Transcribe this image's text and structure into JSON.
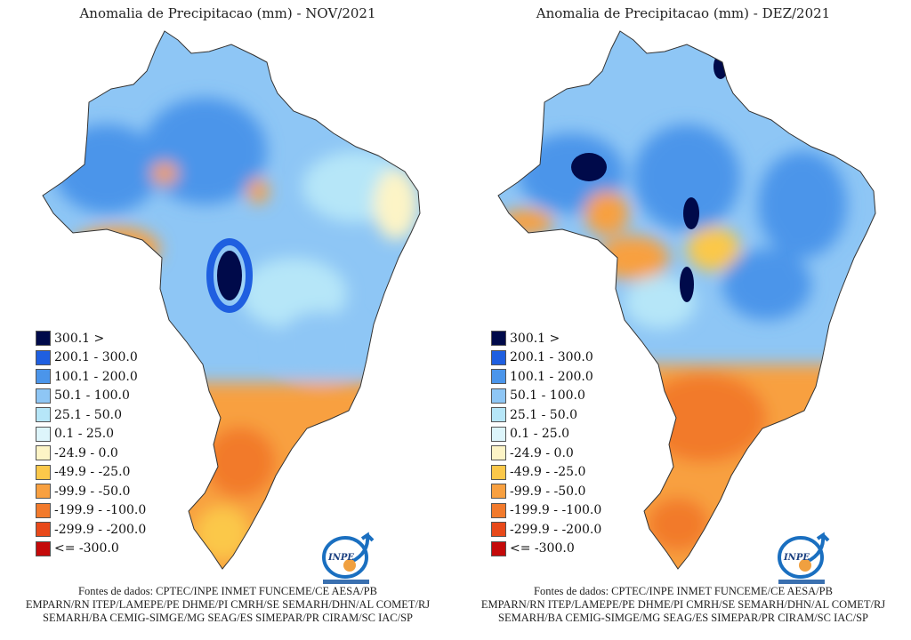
{
  "panels": [
    {
      "title": "Anomalia de Precipitacao (mm) - NOV/2021"
    },
    {
      "title": "Anomalia de Precipitacao (mm) - DEZ/2021"
    }
  ],
  "legend": [
    {
      "label": "300.1 >",
      "color": "#000a4a"
    },
    {
      "label": "200.1 - 300.0",
      "color": "#1f5fe0"
    },
    {
      "label": "100.1 - 200.0",
      "color": "#4b95ea"
    },
    {
      "label": "50.1 - 100.0",
      "color": "#8ec6f5"
    },
    {
      "label": "25.1 - 50.0",
      "color": "#b6e6f8"
    },
    {
      "label": "0.1 - 25.0",
      "color": "#ddf5fb"
    },
    {
      "label": "-24.9 - 0.0",
      "color": "#fdf4c6"
    },
    {
      "label": "-49.9 - -25.0",
      "color": "#fbc84a"
    },
    {
      "label": "-99.9 - -50.0",
      "color": "#f8a040"
    },
    {
      "label": "-199.9 - -100.0",
      "color": "#f27a2c"
    },
    {
      "label": "-299.9 - -200.0",
      "color": "#e8491a"
    },
    {
      "label": "<= -300.0",
      "color": "#c40a0a"
    }
  ],
  "logo": {
    "text": "INPE"
  },
  "footer": [
    "Fontes de dados: CPTEC/INPE INMET FUNCEME/CE AESA/PB",
    "EMPARN/RN ITEP/LAMEPE/PE DHME/PI CMRH/SE SEMARH/DHN/AL COMET/RJ",
    "SEMARH/BA CEMIG-SIMGE/MG SEAG/ES SIMEPAR/PR CIRAM/SC IAC/SP"
  ]
}
